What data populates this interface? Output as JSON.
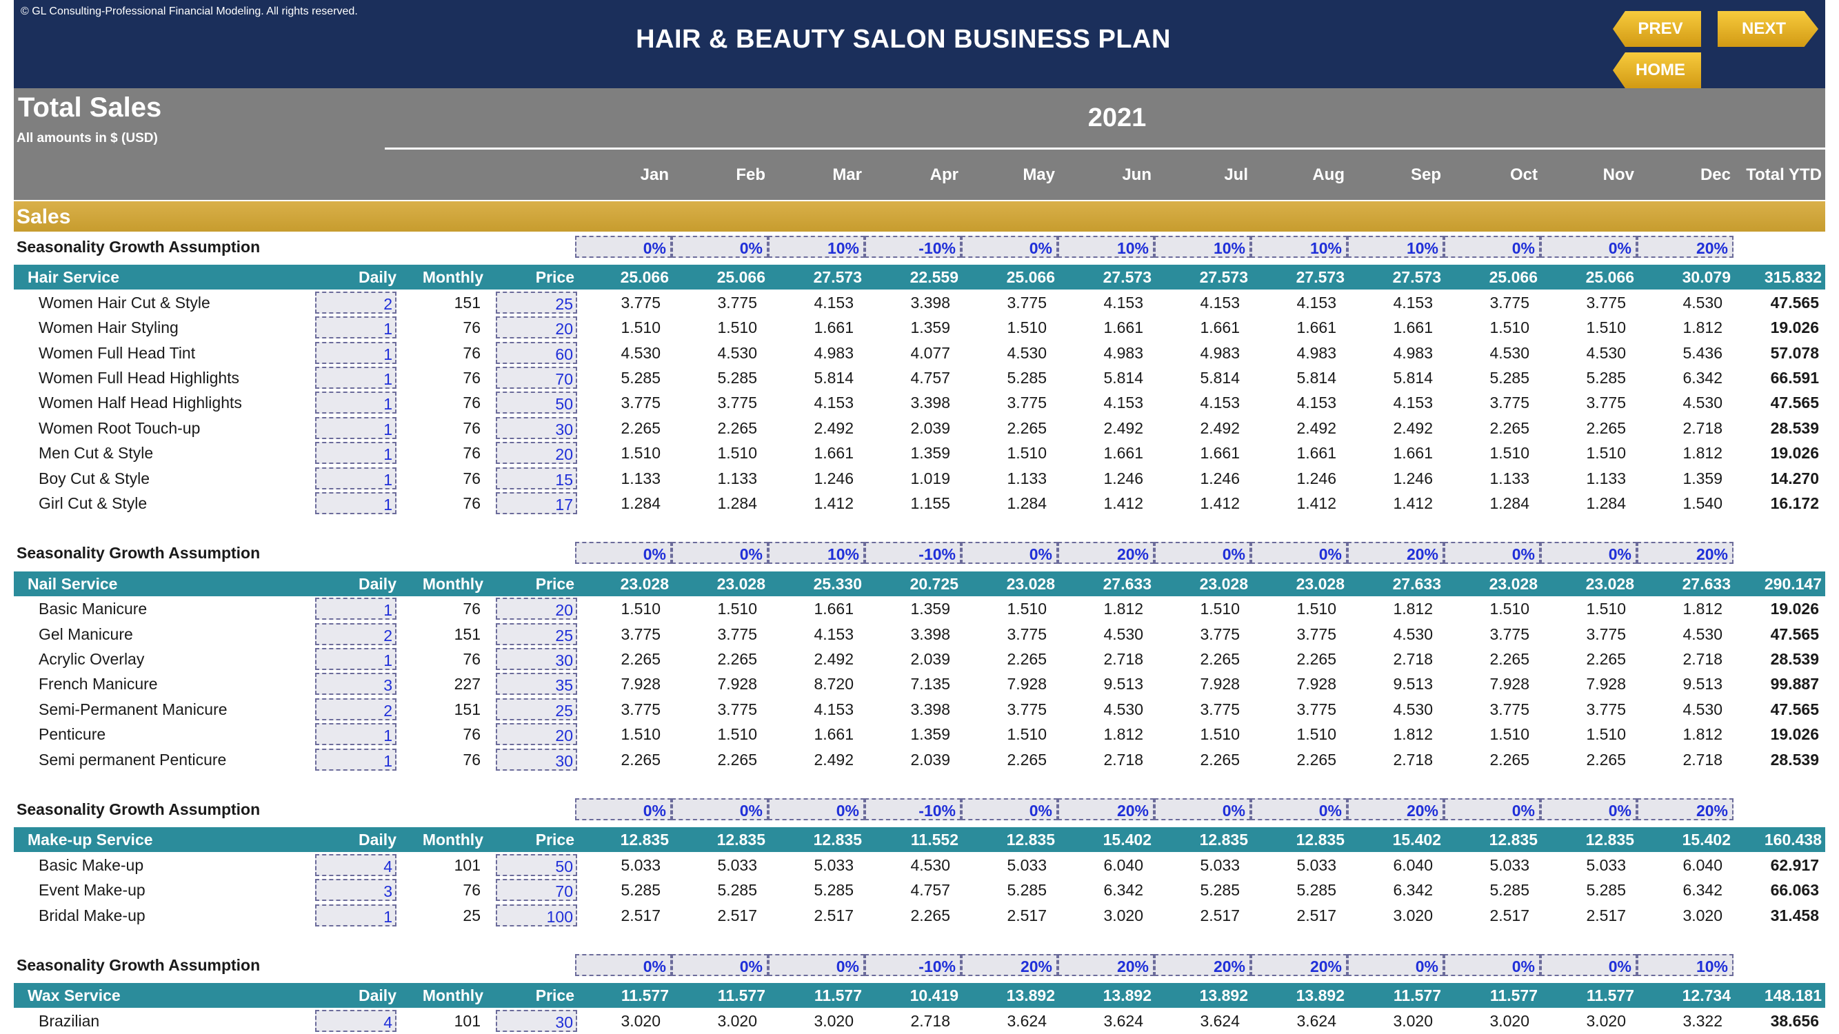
{
  "header": {
    "copyright": "© GL Consulting-Professional Financial Modeling. All rights reserved.",
    "title": "HAIR & BEAUTY SALON BUSINESS PLAN",
    "nav": {
      "prev": "PREV",
      "next": "NEXT",
      "home": "HOME"
    }
  },
  "sheet": {
    "title": "Total Sales",
    "subtitle": "All amounts in $ (USD)",
    "year": "2021",
    "months": [
      "Jan",
      "Feb",
      "Mar",
      "Apr",
      "May",
      "Jun",
      "Jul",
      "Aug",
      "Sep",
      "Oct",
      "Nov",
      "Dec",
      "Total YTD"
    ],
    "sales_label": "Sales"
  },
  "labels": {
    "seasonality": "Seasonality Growth Assumption",
    "daily": "Daily",
    "monthly": "Monthly",
    "price": "Price"
  },
  "sections": [
    {
      "seasonality": [
        "0%",
        "0%",
        "10%",
        "-10%",
        "0%",
        "10%",
        "10%",
        "10%",
        "10%",
        "0%",
        "0%",
        "20%"
      ],
      "name": "Hair Service",
      "totals": [
        "25.066",
        "25.066",
        "27.573",
        "22.559",
        "25.066",
        "27.573",
        "27.573",
        "27.573",
        "27.573",
        "25.066",
        "25.066",
        "30.079",
        "315.832"
      ],
      "items": [
        {
          "name": "Women Hair Cut & Style",
          "daily": "2",
          "monthly": "151",
          "price": "25",
          "values": [
            "3.775",
            "3.775",
            "4.153",
            "3.398",
            "3.775",
            "4.153",
            "4.153",
            "4.153",
            "4.153",
            "3.775",
            "3.775",
            "4.530"
          ],
          "ytd": "47.565"
        },
        {
          "name": "Women Hair Styling",
          "daily": "1",
          "monthly": "76",
          "price": "20",
          "values": [
            "1.510",
            "1.510",
            "1.661",
            "1.359",
            "1.510",
            "1.661",
            "1.661",
            "1.661",
            "1.661",
            "1.510",
            "1.510",
            "1.812"
          ],
          "ytd": "19.026"
        },
        {
          "name": "Women Full Head Tint",
          "daily": "1",
          "monthly": "76",
          "price": "60",
          "values": [
            "4.530",
            "4.530",
            "4.983",
            "4.077",
            "4.530",
            "4.983",
            "4.983",
            "4.983",
            "4.983",
            "4.530",
            "4.530",
            "5.436"
          ],
          "ytd": "57.078"
        },
        {
          "name": "Women Full Head Highlights",
          "daily": "1",
          "monthly": "76",
          "price": "70",
          "values": [
            "5.285",
            "5.285",
            "5.814",
            "4.757",
            "5.285",
            "5.814",
            "5.814",
            "5.814",
            "5.814",
            "5.285",
            "5.285",
            "6.342"
          ],
          "ytd": "66.591"
        },
        {
          "name": "Women Half Head Highlights",
          "daily": "1",
          "monthly": "76",
          "price": "50",
          "values": [
            "3.775",
            "3.775",
            "4.153",
            "3.398",
            "3.775",
            "4.153",
            "4.153",
            "4.153",
            "4.153",
            "3.775",
            "3.775",
            "4.530"
          ],
          "ytd": "47.565"
        },
        {
          "name": "Women Root Touch-up",
          "daily": "1",
          "monthly": "76",
          "price": "30",
          "values": [
            "2.265",
            "2.265",
            "2.492",
            "2.039",
            "2.265",
            "2.492",
            "2.492",
            "2.492",
            "2.492",
            "2.265",
            "2.265",
            "2.718"
          ],
          "ytd": "28.539"
        },
        {
          "name": "Men Cut & Style",
          "daily": "1",
          "monthly": "76",
          "price": "20",
          "values": [
            "1.510",
            "1.510",
            "1.661",
            "1.359",
            "1.510",
            "1.661",
            "1.661",
            "1.661",
            "1.661",
            "1.510",
            "1.510",
            "1.812"
          ],
          "ytd": "19.026"
        },
        {
          "name": "Boy Cut & Style",
          "daily": "1",
          "monthly": "76",
          "price": "15",
          "values": [
            "1.133",
            "1.133",
            "1.246",
            "1.019",
            "1.133",
            "1.246",
            "1.246",
            "1.246",
            "1.246",
            "1.133",
            "1.133",
            "1.359"
          ],
          "ytd": "14.270"
        },
        {
          "name": "Girl Cut & Style",
          "daily": "1",
          "monthly": "76",
          "price": "17",
          "values": [
            "1.284",
            "1.284",
            "1.412",
            "1.155",
            "1.284",
            "1.412",
            "1.412",
            "1.412",
            "1.412",
            "1.284",
            "1.284",
            "1.540"
          ],
          "ytd": "16.172"
        }
      ]
    },
    {
      "seasonality": [
        "0%",
        "0%",
        "10%",
        "-10%",
        "0%",
        "20%",
        "0%",
        "0%",
        "20%",
        "0%",
        "0%",
        "20%"
      ],
      "name": "Nail Service",
      "totals": [
        "23.028",
        "23.028",
        "25.330",
        "20.725",
        "23.028",
        "27.633",
        "23.028",
        "23.028",
        "27.633",
        "23.028",
        "23.028",
        "27.633",
        "290.147"
      ],
      "items": [
        {
          "name": "Basic Manicure",
          "daily": "1",
          "monthly": "76",
          "price": "20",
          "values": [
            "1.510",
            "1.510",
            "1.661",
            "1.359",
            "1.510",
            "1.812",
            "1.510",
            "1.510",
            "1.812",
            "1.510",
            "1.510",
            "1.812"
          ],
          "ytd": "19.026"
        },
        {
          "name": "Gel Manicure",
          "daily": "2",
          "monthly": "151",
          "price": "25",
          "values": [
            "3.775",
            "3.775",
            "4.153",
            "3.398",
            "3.775",
            "4.530",
            "3.775",
            "3.775",
            "4.530",
            "3.775",
            "3.775",
            "4.530"
          ],
          "ytd": "47.565"
        },
        {
          "name": "Acrylic Overlay",
          "daily": "1",
          "monthly": "76",
          "price": "30",
          "values": [
            "2.265",
            "2.265",
            "2.492",
            "2.039",
            "2.265",
            "2.718",
            "2.265",
            "2.265",
            "2.718",
            "2.265",
            "2.265",
            "2.718"
          ],
          "ytd": "28.539"
        },
        {
          "name": "French Manicure",
          "daily": "3",
          "monthly": "227",
          "price": "35",
          "values": [
            "7.928",
            "7.928",
            "8.720",
            "7.135",
            "7.928",
            "9.513",
            "7.928",
            "7.928",
            "9.513",
            "7.928",
            "7.928",
            "9.513"
          ],
          "ytd": "99.887"
        },
        {
          "name": "Semi-Permanent Manicure",
          "daily": "2",
          "monthly": "151",
          "price": "25",
          "values": [
            "3.775",
            "3.775",
            "4.153",
            "3.398",
            "3.775",
            "4.530",
            "3.775",
            "3.775",
            "4.530",
            "3.775",
            "3.775",
            "4.530"
          ],
          "ytd": "47.565"
        },
        {
          "name": "Penticure",
          "daily": "1",
          "monthly": "76",
          "price": "20",
          "values": [
            "1.510",
            "1.510",
            "1.661",
            "1.359",
            "1.510",
            "1.812",
            "1.510",
            "1.510",
            "1.812",
            "1.510",
            "1.510",
            "1.812"
          ],
          "ytd": "19.026"
        },
        {
          "name": "Semi permanent Penticure",
          "daily": "1",
          "monthly": "76",
          "price": "30",
          "values": [
            "2.265",
            "2.265",
            "2.492",
            "2.039",
            "2.265",
            "2.718",
            "2.265",
            "2.265",
            "2.718",
            "2.265",
            "2.265",
            "2.718"
          ],
          "ytd": "28.539"
        }
      ]
    },
    {
      "seasonality": [
        "0%",
        "0%",
        "0%",
        "-10%",
        "0%",
        "20%",
        "0%",
        "0%",
        "20%",
        "0%",
        "0%",
        "20%"
      ],
      "name": "Make-up Service",
      "totals": [
        "12.835",
        "12.835",
        "12.835",
        "11.552",
        "12.835",
        "15.402",
        "12.835",
        "12.835",
        "15.402",
        "12.835",
        "12.835",
        "15.402",
        "160.438"
      ],
      "items": [
        {
          "name": "Basic Make-up",
          "daily": "4",
          "monthly": "101",
          "price": "50",
          "values": [
            "5.033",
            "5.033",
            "5.033",
            "4.530",
            "5.033",
            "6.040",
            "5.033",
            "5.033",
            "6.040",
            "5.033",
            "5.033",
            "6.040"
          ],
          "ytd": "62.917"
        },
        {
          "name": "Event Make-up",
          "daily": "3",
          "monthly": "76",
          "price": "70",
          "values": [
            "5.285",
            "5.285",
            "5.285",
            "4.757",
            "5.285",
            "6.342",
            "5.285",
            "5.285",
            "6.342",
            "5.285",
            "5.285",
            "6.342"
          ],
          "ytd": "66.063"
        },
        {
          "name": "Bridal Make-up",
          "daily": "1",
          "monthly": "25",
          "price": "100",
          "values": [
            "2.517",
            "2.517",
            "2.517",
            "2.265",
            "2.517",
            "3.020",
            "2.517",
            "2.517",
            "3.020",
            "2.517",
            "2.517",
            "3.020"
          ],
          "ytd": "31.458"
        }
      ]
    },
    {
      "seasonality": [
        "0%",
        "0%",
        "0%",
        "-10%",
        "20%",
        "20%",
        "20%",
        "20%",
        "0%",
        "0%",
        "0%",
        "10%"
      ],
      "name": "Wax Service",
      "totals": [
        "11.577",
        "11.577",
        "11.577",
        "10.419",
        "13.892",
        "13.892",
        "13.892",
        "13.892",
        "11.577",
        "11.577",
        "11.577",
        "12.734",
        "148.181"
      ],
      "items": [
        {
          "name": "Brazilian",
          "daily": "4",
          "monthly": "101",
          "price": "30",
          "values": [
            "3.020",
            "3.020",
            "3.020",
            "2.718",
            "3.624",
            "3.624",
            "3.624",
            "3.624",
            "3.020",
            "3.020",
            "3.020",
            "3.322"
          ],
          "ytd": "38.656"
        }
      ]
    }
  ]
}
